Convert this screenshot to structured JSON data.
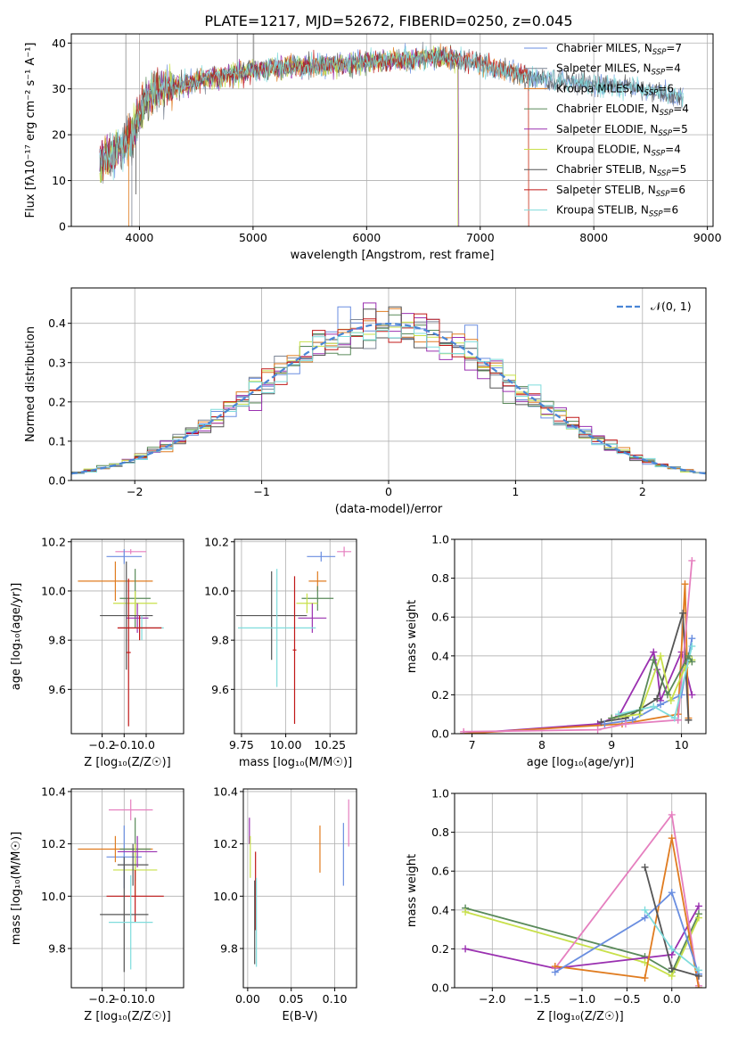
{
  "figure_title": "PLATE=1217, MJD=52672, FIBERID=0250, z=0.045",
  "colors": {
    "Chabrier MILES": "#6a8ee0",
    "Salpeter MILES": "#7c8595",
    "Kroupa MILES": "#e07c20",
    "Chabrier ELODIE": "#5a8a5a",
    "Salpeter ELODIE": "#9a30b0",
    "Kroupa ELODIE": "#c8e04a",
    "Chabrier STELIB": "#555555",
    "Salpeter STELIB": "#c01818",
    "Kroupa STELIB": "#7fdcdc",
    "Pink": "#e57fbf",
    "Normal": "#4a86d6"
  },
  "chart_data": [
    {
      "id": "spectrum",
      "type": "line",
      "xlabel": "wavelength [Angstrom, rest frame]",
      "ylabel": "Flux [fλ10⁻¹⁷ erg cm⁻² s⁻¹ A⁻¹]",
      "xlim": [
        3400,
        9050
      ],
      "ylim": [
        0,
        42
      ],
      "xticks": [
        4000,
        5000,
        6000,
        7000,
        8000,
        9000
      ],
      "yticks": [
        0,
        10,
        20,
        30,
        40
      ],
      "legend_position": "top-right",
      "legend": [
        {
          "label": "Chabrier MILES, N",
          "sub": "SSP",
          "suffix": "=7",
          "color": "#6a8ee0"
        },
        {
          "label": "Salpeter MILES, N",
          "sub": "SSP",
          "suffix": "=4",
          "color": "#7c8595"
        },
        {
          "label": "Kroupa MILES, N",
          "sub": "SSP",
          "suffix": "=6",
          "color": "#e07c20"
        },
        {
          "label": "Chabrier ELODIE, N",
          "sub": "SSP",
          "suffix": "=4",
          "color": "#5a8a5a"
        },
        {
          "label": "Salpeter ELODIE, N",
          "sub": "SSP",
          "suffix": "=5",
          "color": "#9a30b0"
        },
        {
          "label": "Kroupa ELODIE, N",
          "sub": "SSP",
          "suffix": "=4",
          "color": "#c8e04a"
        },
        {
          "label": "Chabrier STELIB, N",
          "sub": "SSP",
          "suffix": "=5",
          "color": "#555555"
        },
        {
          "label": "Salpeter STELIB, N",
          "sub": "SSP",
          "suffix": "=6",
          "color": "#c01818"
        },
        {
          "label": "Kroupa STELIB, N",
          "sub": "SSP",
          "suffix": "=6",
          "color": "#7fdcdc"
        }
      ],
      "continuum": {
        "x": [
          3650,
          3750,
          3850,
          3950,
          4050,
          4200,
          4400,
          4600,
          4800,
          5000,
          5200,
          5400,
          5600,
          5800,
          6000,
          6200,
          6400,
          6600,
          6800,
          7000,
          7200,
          7400,
          7600,
          7800,
          8000,
          8200,
          8400,
          8600,
          8800
        ],
        "y": [
          14,
          16,
          17,
          21,
          28,
          30,
          31,
          32.5,
          33,
          34,
          34.5,
          35,
          35,
          35.5,
          36,
          36,
          36.5,
          37,
          36.5,
          35.5,
          34,
          33,
          32,
          31.5,
          31,
          30.5,
          30,
          29,
          28
        ]
      }
    },
    {
      "id": "residuals",
      "type": "histogram",
      "xlabel": "(data-model)/error",
      "ylabel": "Normed distribution",
      "xlim": [
        -2.5,
        2.5
      ],
      "ylim": [
        0,
        0.49
      ],
      "xticks": [
        -2,
        -1,
        0,
        1,
        2
      ],
      "yticks": [
        0.0,
        0.1,
        0.2,
        0.3,
        0.4
      ],
      "bin_width": 0.1,
      "legend_position": "top-right",
      "legend": [
        {
          "label": "𝒩(0, 1)",
          "color": "#4a86d6",
          "style": "dashed"
        }
      ]
    },
    {
      "id": "age-vs-Z",
      "type": "errorbar",
      "xlabel": "Z [log₁₀(Z/Z☉)]",
      "ylabel": "age  [log₁₀(age/yr)]",
      "xlim": [
        -0.34,
        0.17
      ],
      "ylim": [
        9.42,
        10.21
      ],
      "xticks": [
        -0.2,
        -0.1,
        0.0
      ],
      "yticks": [
        9.6,
        9.8,
        10.0,
        10.2
      ],
      "series": [
        {
          "x": -0.07,
          "y": 10.16,
          "xerr": 0.07,
          "yerr": 0.01,
          "color": "#e57fbf"
        },
        {
          "x": -0.1,
          "y": 10.14,
          "xerr": 0.08,
          "yerr": 0.03,
          "color": "#6a8ee0"
        },
        {
          "x": -0.14,
          "y": 10.04,
          "xerr": 0.17,
          "yerr": 0.08,
          "color": "#e07c20"
        },
        {
          "x": -0.05,
          "y": 9.97,
          "xerr": 0.07,
          "yerr": 0.12,
          "color": "#5a8a5a"
        },
        {
          "x": -0.05,
          "y": 9.95,
          "xerr": 0.1,
          "yerr": 0.05,
          "color": "#c8e04a"
        },
        {
          "x": -0.09,
          "y": 9.9,
          "xerr": 0.12,
          "yerr": 0.22,
          "color": "#555555"
        },
        {
          "x": -0.04,
          "y": 9.89,
          "xerr": 0.05,
          "yerr": 0.06,
          "color": "#9a30b0"
        },
        {
          "x": -0.02,
          "y": 9.85,
          "xerr": 0.1,
          "yerr": 0.05,
          "color": "#7fdcdc"
        },
        {
          "x": -0.03,
          "y": 9.85,
          "xerr": 0.1,
          "yerr": 0.05,
          "color": "#c01818"
        },
        {
          "x": -0.08,
          "y": 9.75,
          "xerr": 0.01,
          "yerr": 0.3,
          "color": "#c01818"
        }
      ]
    },
    {
      "id": "age-vs-mass",
      "type": "errorbar",
      "xlabel": "mass [log₁₀(M/M☉)]",
      "ylabel": "",
      "xlim": [
        9.71,
        10.4
      ],
      "ylim": [
        9.42,
        10.21
      ],
      "xticks": [
        9.75,
        10.0,
        10.25
      ],
      "yticks": [
        9.6,
        9.8,
        10.0,
        10.2
      ],
      "series": [
        {
          "x": 10.33,
          "y": 10.16,
          "xerr": 0.04,
          "yerr": 0.02,
          "color": "#e57fbf"
        },
        {
          "x": 10.2,
          "y": 10.14,
          "xerr": 0.08,
          "yerr": 0.02,
          "color": "#6a8ee0"
        },
        {
          "x": 10.18,
          "y": 10.04,
          "xerr": 0.05,
          "yerr": 0.04,
          "color": "#e07c20"
        },
        {
          "x": 10.18,
          "y": 9.97,
          "xerr": 0.09,
          "yerr": 0.05,
          "color": "#5a8a5a"
        },
        {
          "x": 10.12,
          "y": 9.95,
          "xerr": 0.06,
          "yerr": 0.04,
          "color": "#c8e04a"
        },
        {
          "x": 9.92,
          "y": 9.9,
          "xerr": 0.2,
          "yerr": 0.18,
          "color": "#555555"
        },
        {
          "x": 10.15,
          "y": 9.89,
          "xerr": 0.08,
          "yerr": 0.06,
          "color": "#9a30b0"
        },
        {
          "x": 9.95,
          "y": 9.85,
          "xerr": 0.22,
          "yerr": 0.24,
          "color": "#7fdcdc"
        },
        {
          "x": 10.05,
          "y": 9.76,
          "xerr": 0.01,
          "yerr": 0.3,
          "color": "#c01818"
        }
      ]
    },
    {
      "id": "weight-vs-age",
      "type": "line",
      "xlabel": "age  [log₁₀(age/yr)]",
      "ylabel": "mass weight",
      "xlim": [
        6.75,
        10.35
      ],
      "ylim": [
        0,
        1
      ],
      "xticks": [
        7,
        8,
        9,
        10
      ],
      "yticks": [
        0.0,
        0.2,
        0.4,
        0.6,
        0.8,
        1.0
      ],
      "series": [
        {
          "color": "#9a30b0",
          "x": [
            6.88,
            8.8,
            9.1,
            9.6,
            9.65,
            9.7,
            10.0,
            10.15
          ],
          "y": [
            0.0,
            0.05,
            0.09,
            0.42,
            0.33,
            0.17,
            0.42,
            0.2
          ]
        },
        {
          "color": "#e07c20",
          "x": [
            6.88,
            9.15,
            9.95,
            10.05,
            10.1
          ],
          "y": [
            0.0,
            0.05,
            0.1,
            0.77,
            0.08
          ]
        },
        {
          "color": "#555555",
          "x": [
            8.85,
            9.2,
            9.65,
            10.02,
            10.1
          ],
          "y": [
            0.06,
            0.08,
            0.18,
            0.62,
            0.07
          ]
        },
        {
          "color": "#6a8ee0",
          "x": [
            8.9,
            9.3,
            9.7,
            10.0,
            10.15
          ],
          "y": [
            0.05,
            0.07,
            0.15,
            0.2,
            0.49
          ]
        },
        {
          "color": "#e57fbf",
          "x": [
            6.88,
            8.8,
            9.2,
            9.95,
            10.15
          ],
          "y": [
            0.01,
            0.02,
            0.05,
            0.07,
            0.89
          ]
        },
        {
          "color": "#c8e04a",
          "x": [
            9.0,
            9.4,
            9.7,
            9.85,
            10.05,
            10.15
          ],
          "y": [
            0.08,
            0.1,
            0.4,
            0.17,
            0.34,
            0.38
          ]
        },
        {
          "color": "#7fdcdc",
          "x": [
            9.1,
            9.6,
            9.9,
            10.15
          ],
          "y": [
            0.1,
            0.14,
            0.08,
            0.45
          ]
        },
        {
          "color": "#5a8a5a",
          "x": [
            9.0,
            9.4,
            9.6,
            9.8,
            10.1,
            10.15
          ],
          "y": [
            0.08,
            0.12,
            0.38,
            0.2,
            0.4,
            0.37
          ]
        }
      ]
    },
    {
      "id": "mass-vs-Z",
      "type": "errorbar",
      "xlabel": "Z [log₁₀(Z/Z☉)]",
      "ylabel": "mass [log₁₀(M/M☉)]",
      "xlim": [
        -0.34,
        0.17
      ],
      "ylim": [
        9.65,
        10.41
      ],
      "xticks": [
        -0.2,
        -0.1,
        0.0
      ],
      "yticks": [
        9.8,
        10.0,
        10.2,
        10.4
      ],
      "series": [
        {
          "x": -0.07,
          "y": 10.33,
          "xerr": 0.1,
          "yerr": 0.04,
          "color": "#e57fbf"
        },
        {
          "x": -0.1,
          "y": 10.15,
          "xerr": 0.08,
          "yerr": 0.12,
          "color": "#6a8ee0"
        },
        {
          "x": -0.14,
          "y": 10.18,
          "xerr": 0.17,
          "yerr": 0.05,
          "color": "#e07c20"
        },
        {
          "x": -0.05,
          "y": 10.18,
          "xerr": 0.07,
          "yerr": 0.12,
          "color": "#5a8a5a"
        },
        {
          "x": -0.05,
          "y": 10.1,
          "xerr": 0.1,
          "yerr": 0.1,
          "color": "#c8e04a"
        },
        {
          "x": -0.06,
          "y": 10.12,
          "xerr": 0.07,
          "yerr": 0.08,
          "color": "#555555"
        },
        {
          "x": -0.04,
          "y": 10.17,
          "xerr": 0.09,
          "yerr": 0.06,
          "color": "#9a30b0"
        },
        {
          "x": -0.05,
          "y": 10.0,
          "xerr": 0.13,
          "yerr": 0.1,
          "color": "#c01818"
        },
        {
          "x": -0.1,
          "y": 9.93,
          "xerr": 0.11,
          "yerr": 0.22,
          "color": "#555555"
        },
        {
          "x": -0.07,
          "y": 9.9,
          "xerr": 0.1,
          "yerr": 0.18,
          "color": "#7fdcdc"
        }
      ]
    },
    {
      "id": "mass-vs-EBV",
      "type": "errorbar",
      "xlabel": "E(B-V)",
      "ylabel": "",
      "xlim": [
        -0.005,
        0.125
      ],
      "ylim": [
        9.65,
        10.41
      ],
      "xticks": [
        0.0,
        0.05,
        0.1
      ],
      "yticks": [
        9.8,
        10.0,
        10.2,
        10.4
      ],
      "series": [
        {
          "x": 0.116,
          "y": 10.28,
          "xerr": 0,
          "yerr": 0.09,
          "color": "#e57fbf"
        },
        {
          "x": 0.11,
          "y": 10.16,
          "xerr": 0,
          "yerr": 0.12,
          "color": "#6a8ee0"
        },
        {
          "x": 0.083,
          "y": 10.18,
          "xerr": 0,
          "yerr": 0.09,
          "color": "#e07c20"
        },
        {
          "x": 0.002,
          "y": 10.25,
          "xerr": 0,
          "yerr": 0.05,
          "color": "#9a30b0"
        },
        {
          "x": 0.003,
          "y": 10.15,
          "xerr": 0,
          "yerr": 0.08,
          "color": "#c8e04a"
        },
        {
          "x": 0.009,
          "y": 10.02,
          "xerr": 0,
          "yerr": 0.15,
          "color": "#c01818"
        },
        {
          "x": 0.01,
          "y": 9.9,
          "xerr": 0,
          "yerr": 0.17,
          "color": "#7fdcdc"
        },
        {
          "x": 0.008,
          "y": 9.9,
          "xerr": 0,
          "yerr": 0.16,
          "color": "#555555"
        }
      ]
    },
    {
      "id": "weight-vs-Z",
      "type": "line",
      "xlabel": "Z [log₁₀(Z/Z☉)]",
      "ylabel": "mass weight",
      "xlim": [
        -2.42,
        0.38
      ],
      "ylim": [
        0,
        1
      ],
      "xticks": [
        -2.0,
        -1.5,
        -1.0,
        -0.5,
        0.0
      ],
      "yticks": [
        0.0,
        0.2,
        0.4,
        0.6,
        0.8,
        1.0
      ],
      "series": [
        {
          "color": "#5a8a5a",
          "x": [
            -2.3,
            -0.3,
            0.0,
            0.3
          ],
          "y": [
            0.41,
            0.16,
            0.08,
            0.38
          ]
        },
        {
          "color": "#c8e04a",
          "x": [
            -2.3,
            -0.3,
            0.0,
            0.3
          ],
          "y": [
            0.39,
            0.13,
            0.06,
            0.36
          ]
        },
        {
          "color": "#9a30b0",
          "x": [
            -2.3,
            -1.3,
            0.0,
            0.3
          ],
          "y": [
            0.2,
            0.1,
            0.17,
            0.42
          ]
        },
        {
          "color": "#e57fbf",
          "x": [
            -1.3,
            0.0,
            0.3
          ],
          "y": [
            0.1,
            0.89,
            0.01
          ]
        },
        {
          "color": "#e07c20",
          "x": [
            -1.3,
            -0.3,
            0.0,
            0.3
          ],
          "y": [
            0.11,
            0.05,
            0.77,
            0.0
          ]
        },
        {
          "color": "#6a8ee0",
          "x": [
            -1.3,
            -0.3,
            0.0,
            0.3
          ],
          "y": [
            0.08,
            0.36,
            0.49,
            0.07
          ]
        },
        {
          "color": "#555555",
          "x": [
            -0.3,
            0.0,
            0.3
          ],
          "y": [
            0.62,
            0.1,
            0.06
          ]
        },
        {
          "color": "#7fdcdc",
          "x": [
            -0.3,
            0.0,
            0.3
          ],
          "y": [
            0.4,
            0.2,
            0.09
          ]
        }
      ]
    }
  ]
}
